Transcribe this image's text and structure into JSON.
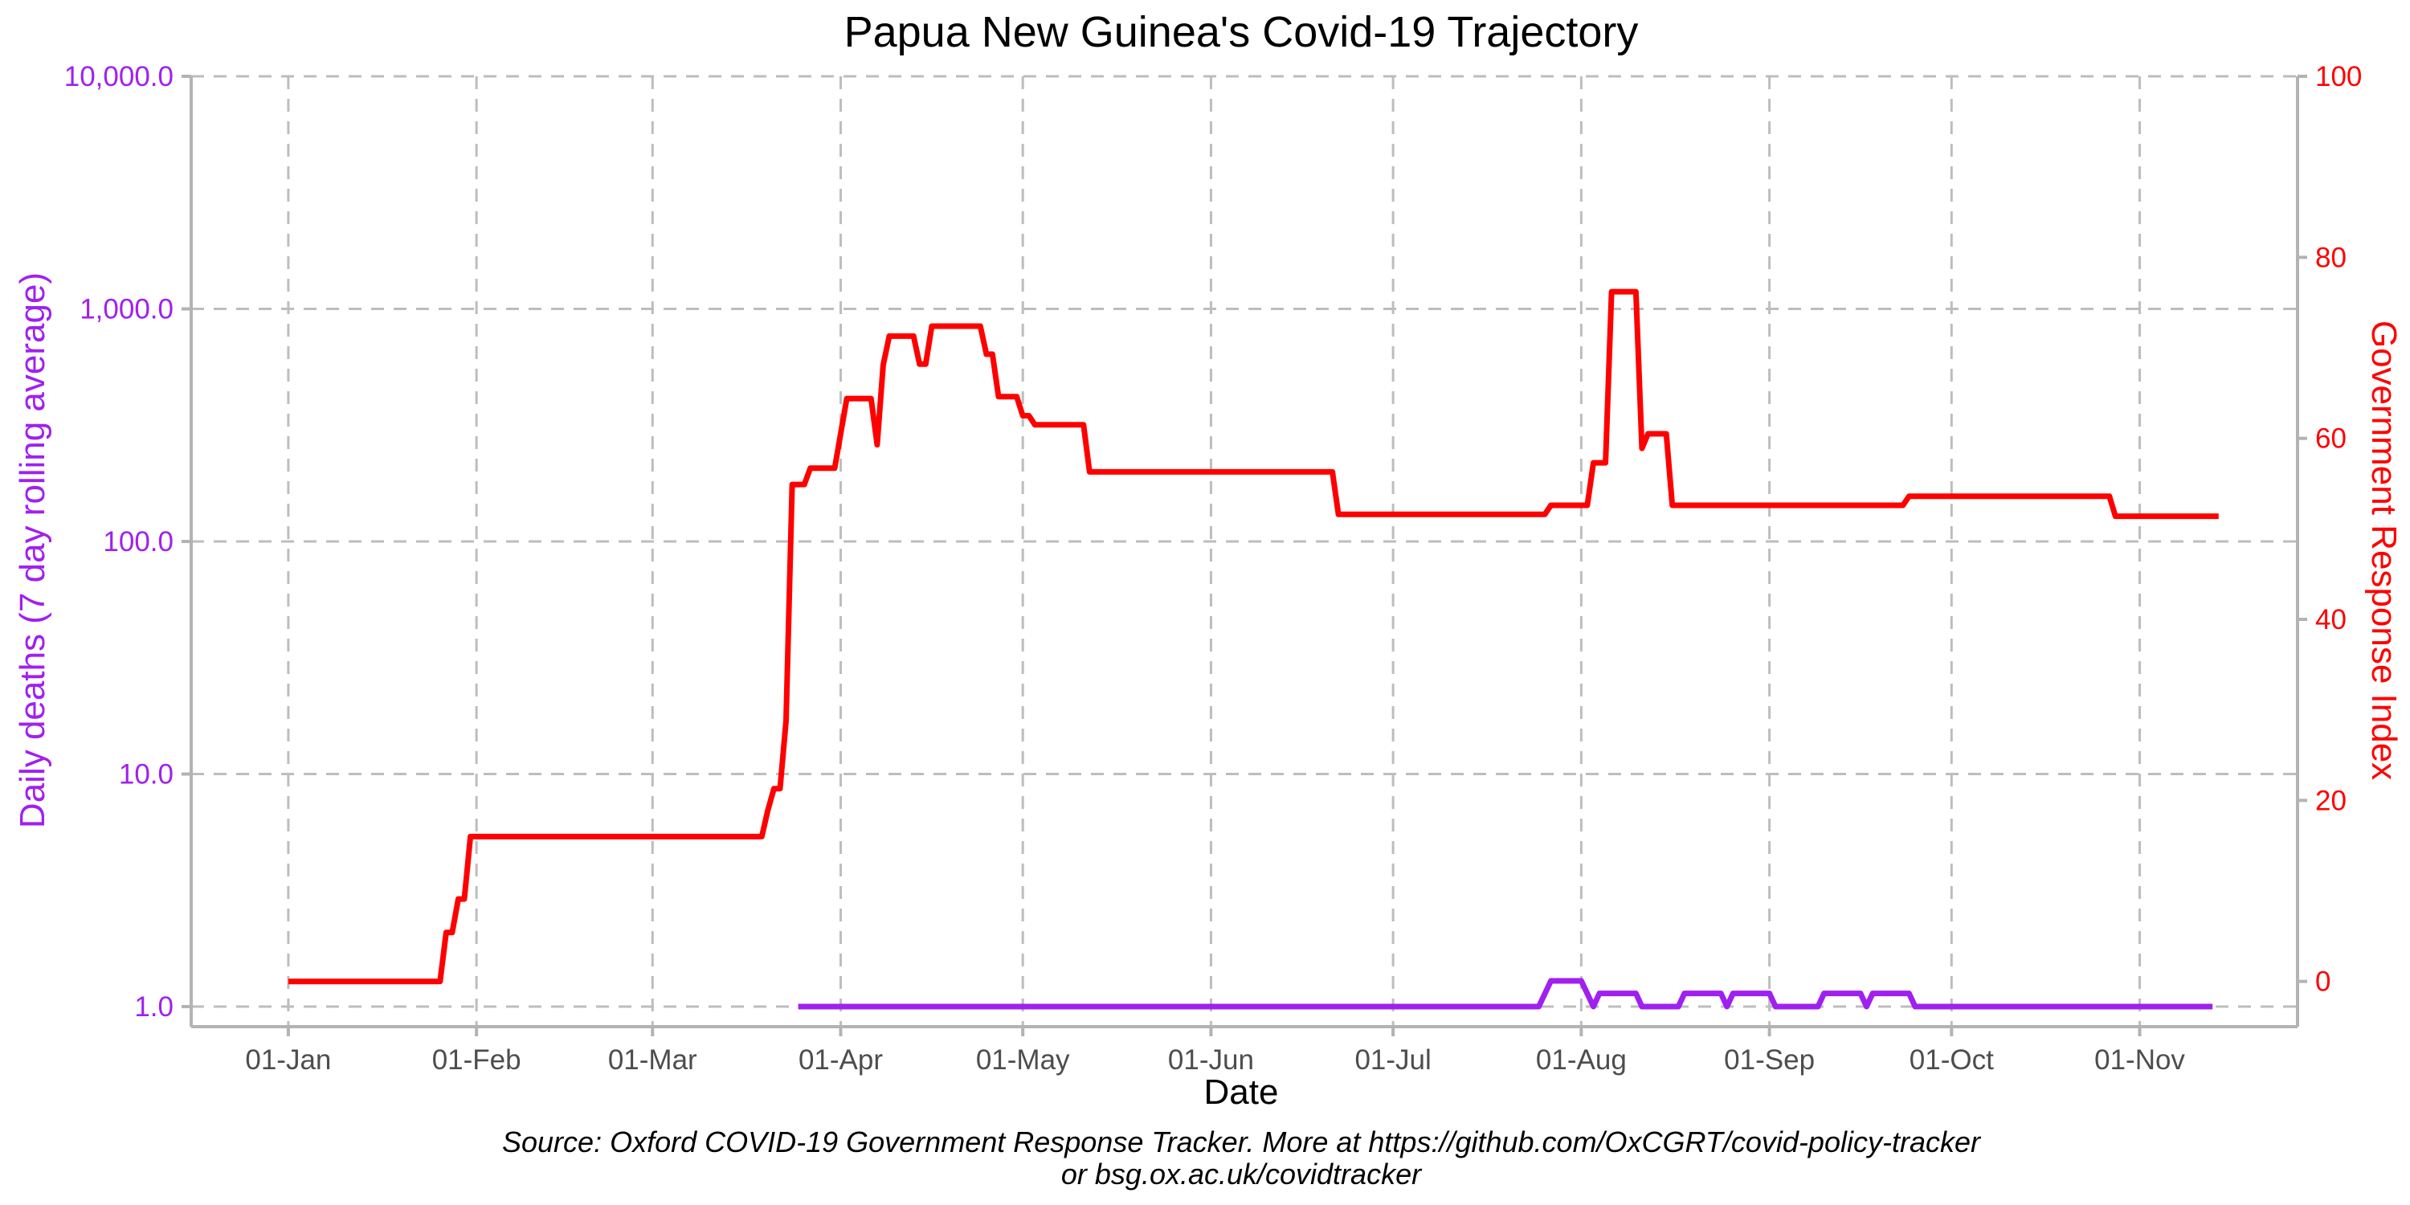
{
  "colors": {
    "deaths": "#a020f0",
    "response": "#ff0000",
    "grid": "#bdbdbd",
    "axis": "#b3b3b3",
    "tick_text": "#4d4d4d"
  },
  "chart_data": {
    "type": "line",
    "title": "Papua New Guinea's Covid-19 Trajectory",
    "xlabel": "Date",
    "ylabel_left": "Daily deaths (7 day rolling average)",
    "ylabel_right": "Government Response Index",
    "caption_line1": "Source: Oxford COVID-19 Government Response Tracker. More at https://github.com/OxCGRT/covid-policy-tracker",
    "caption_line2": "or bsg.ox.ac.uk/covidtracker",
    "x_ticks": [
      "01-Jan",
      "01-Feb",
      "01-Mar",
      "01-Apr",
      "01-May",
      "01-Jun",
      "01-Jul",
      "01-Aug",
      "01-Sep",
      "01-Oct",
      "01-Nov"
    ],
    "x_range": [
      "2019-12-16",
      "2020-11-27"
    ],
    "y_left": {
      "scale": "log",
      "range": [
        0.82,
        10000
      ],
      "ticks": [
        1,
        10,
        100,
        1000,
        10000
      ],
      "tick_labels": [
        "1.0",
        "10.0",
        "100.0",
        "1,000.0",
        "10,000.0"
      ]
    },
    "y_right": {
      "scale": "linear",
      "range": [
        -5,
        100
      ],
      "ticks": [
        0,
        20,
        40,
        60,
        80,
        100
      ],
      "tick_labels": [
        "0",
        "20",
        "40",
        "60",
        "80",
        "100"
      ]
    },
    "grid": true,
    "series": [
      {
        "name": "Government Response Index",
        "axis": "right",
        "color": "#ff0000",
        "points": [
          [
            "2020-01-01",
            0
          ],
          [
            "2020-01-26",
            0
          ],
          [
            "2020-01-27",
            5.4
          ],
          [
            "2020-01-28",
            5.4
          ],
          [
            "2020-01-29",
            9.1
          ],
          [
            "2020-01-30",
            9.1
          ],
          [
            "2020-01-31",
            16
          ],
          [
            "2020-03-19",
            16
          ],
          [
            "2020-03-20",
            18.9
          ],
          [
            "2020-03-21",
            21.3
          ],
          [
            "2020-03-22",
            21.3
          ],
          [
            "2020-03-23",
            28.8
          ],
          [
            "2020-03-24",
            54.9
          ],
          [
            "2020-03-25",
            54.9
          ],
          [
            "2020-03-26",
            54.9
          ],
          [
            "2020-03-27",
            56.7
          ],
          [
            "2020-03-31",
            56.7
          ],
          [
            "2020-04-02",
            64.4
          ],
          [
            "2020-04-06",
            64.4
          ],
          [
            "2020-04-07",
            59.3
          ],
          [
            "2020-04-08",
            68.1
          ],
          [
            "2020-04-09",
            71.3
          ],
          [
            "2020-04-13",
            71.3
          ],
          [
            "2020-04-14",
            68.2
          ],
          [
            "2020-04-15",
            68.2
          ],
          [
            "2020-04-16",
            72.4
          ],
          [
            "2020-04-24",
            72.4
          ],
          [
            "2020-04-25",
            69.3
          ],
          [
            "2020-04-26",
            69.3
          ],
          [
            "2020-04-27",
            64.6
          ],
          [
            "2020-04-30",
            64.6
          ],
          [
            "2020-05-01",
            62.5
          ],
          [
            "2020-05-02",
            62.5
          ],
          [
            "2020-05-03",
            61.5
          ],
          [
            "2020-05-11",
            61.5
          ],
          [
            "2020-05-12",
            56.3
          ],
          [
            "2020-06-21",
            56.3
          ],
          [
            "2020-06-22",
            51.6
          ],
          [
            "2020-07-26",
            51.6
          ],
          [
            "2020-07-27",
            52.6
          ],
          [
            "2020-08-02",
            52.6
          ],
          [
            "2020-08-03",
            57.3
          ],
          [
            "2020-08-05",
            57.3
          ],
          [
            "2020-08-06",
            76.2
          ],
          [
            "2020-08-10",
            76.2
          ],
          [
            "2020-08-11",
            58.9
          ],
          [
            "2020-08-12",
            60.5
          ],
          [
            "2020-08-15",
            60.5
          ],
          [
            "2020-08-16",
            52.6
          ],
          [
            "2020-09-23",
            52.6
          ],
          [
            "2020-09-24",
            53.6
          ],
          [
            "2020-10-27",
            53.6
          ],
          [
            "2020-10-28",
            51.4
          ],
          [
            "2020-11-14",
            51.4
          ]
        ]
      },
      {
        "name": "Daily deaths (7 day rolling average)",
        "axis": "left",
        "color": "#a020f0",
        "points": [
          [
            "2020-03-25",
            1
          ],
          [
            "2020-07-25",
            1
          ],
          [
            "2020-07-27",
            1.29
          ],
          [
            "2020-08-01",
            1.29
          ],
          [
            "2020-08-03",
            1
          ],
          [
            "2020-08-04",
            1.14
          ],
          [
            "2020-08-10",
            1.14
          ],
          [
            "2020-08-11",
            1
          ],
          [
            "2020-08-17",
            1
          ],
          [
            "2020-08-18",
            1.14
          ],
          [
            "2020-08-24",
            1.14
          ],
          [
            "2020-08-25",
            1
          ],
          [
            "2020-08-26",
            1.14
          ],
          [
            "2020-09-01",
            1.14
          ],
          [
            "2020-09-02",
            1
          ],
          [
            "2020-09-09",
            1
          ],
          [
            "2020-09-10",
            1.14
          ],
          [
            "2020-09-16",
            1.14
          ],
          [
            "2020-09-17",
            1
          ],
          [
            "2020-09-18",
            1.14
          ],
          [
            "2020-09-24",
            1.14
          ],
          [
            "2020-09-25",
            1
          ],
          [
            "2020-11-13",
            1
          ]
        ]
      }
    ]
  }
}
